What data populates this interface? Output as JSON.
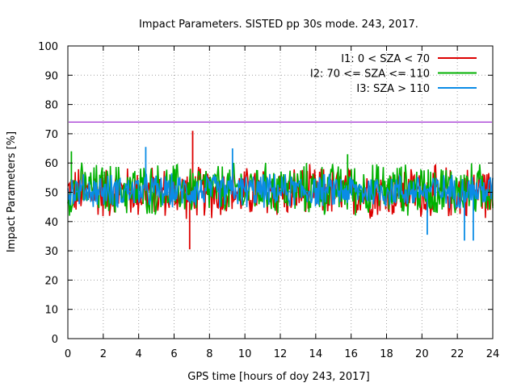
{
  "chart_data": {
    "type": "line",
    "title": "Impact Parameters. SISTED pp 30s mode. 243, 2017.",
    "xlabel": "GPS time [hours of doy 243, 2017]",
    "ylabel": "Impact Parameters [%]",
    "xlim": [
      0,
      24
    ],
    "ylim": [
      0,
      100
    ],
    "xticks": [
      "0",
      "2",
      "4",
      "6",
      "8",
      "10",
      "12",
      "14",
      "16",
      "18",
      "20",
      "22",
      "24"
    ],
    "yticks": [
      "0",
      "10",
      "20",
      "30",
      "40",
      "50",
      "60",
      "70",
      "80",
      "90",
      "100"
    ],
    "grid": true,
    "legend_position": "top-right",
    "reference_line": {
      "y": 74,
      "color": "#8b00c8"
    },
    "series": [
      {
        "name": "I1: 0 < SZA < 70",
        "color": "#dd0000",
        "x": [
          0.5,
          1.5,
          2.5,
          3.5,
          4.5,
          5.5,
          6.5,
          6.88,
          7.05,
          8.0,
          9.5,
          10.5,
          11.5,
          12.5,
          13.5,
          14.5,
          15.5,
          16.5,
          17.5,
          18.5,
          19.5,
          20.5,
          21.5,
          22.5,
          23.5
        ],
        "values": [
          50,
          51,
          49,
          50,
          50,
          50,
          49,
          30.5,
          71,
          50,
          50,
          50,
          51,
          50,
          50,
          49,
          50,
          50,
          50,
          50,
          51,
          50,
          50,
          49,
          50
        ],
        "band_low": 40,
        "band_high": 60
      },
      {
        "name": "I2: 70 <= SZA <= 110",
        "color": "#00b000",
        "x": [
          0.2,
          1.5,
          3.0,
          4.5,
          6.0,
          7.5,
          9.0,
          10.5,
          12.0,
          13.5,
          15.0,
          15.8,
          16.5,
          18.0,
          19.5,
          21.0,
          22.5,
          23.8
        ],
        "values": [
          64,
          50,
          50,
          50,
          50,
          50,
          50,
          50,
          50,
          50,
          50,
          63,
          50,
          50,
          50,
          50,
          50,
          50
        ],
        "band_low": 41,
        "band_high": 61
      },
      {
        "name": "I3: SZA > 110",
        "color": "#0a8ce6",
        "x": [
          0.5,
          1.5,
          2.5,
          3.5,
          4.4,
          5.5,
          6.5,
          7.5,
          8.5,
          9.3,
          10.5,
          11.5,
          12.5,
          13.5,
          14.5,
          15.5,
          16.5,
          17.5,
          18.5,
          19.5,
          20.3,
          21.5,
          22.4,
          22.9,
          23.6
        ],
        "values": [
          50,
          50,
          50,
          50,
          65.5,
          50,
          50,
          50,
          50,
          65,
          50,
          50,
          50,
          50,
          50,
          50,
          50,
          50,
          50,
          50,
          35.5,
          50,
          33.5,
          33.5,
          50
        ],
        "band_low": 44,
        "band_high": 57
      }
    ]
  }
}
